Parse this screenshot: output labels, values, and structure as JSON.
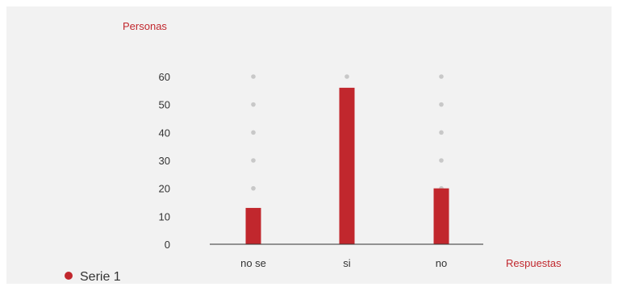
{
  "chart_data": {
    "type": "bar",
    "categories": [
      "no se",
      "si",
      "no"
    ],
    "series": [
      {
        "name": "Serie 1",
        "values": [
          13,
          56,
          20
        ]
      }
    ],
    "ylabel": "Personas",
    "xlabel": "Respuestas",
    "yticks": [
      0,
      10,
      20,
      30,
      40,
      50,
      60
    ],
    "ylim": [
      0,
      60
    ],
    "grid": "dotted",
    "legend": "bottom-left",
    "colors": {
      "bar": "#c1272d",
      "axis_title": "#c1272d",
      "grid_dot": "#c8c8c8",
      "background": "#f2f2f2"
    }
  }
}
